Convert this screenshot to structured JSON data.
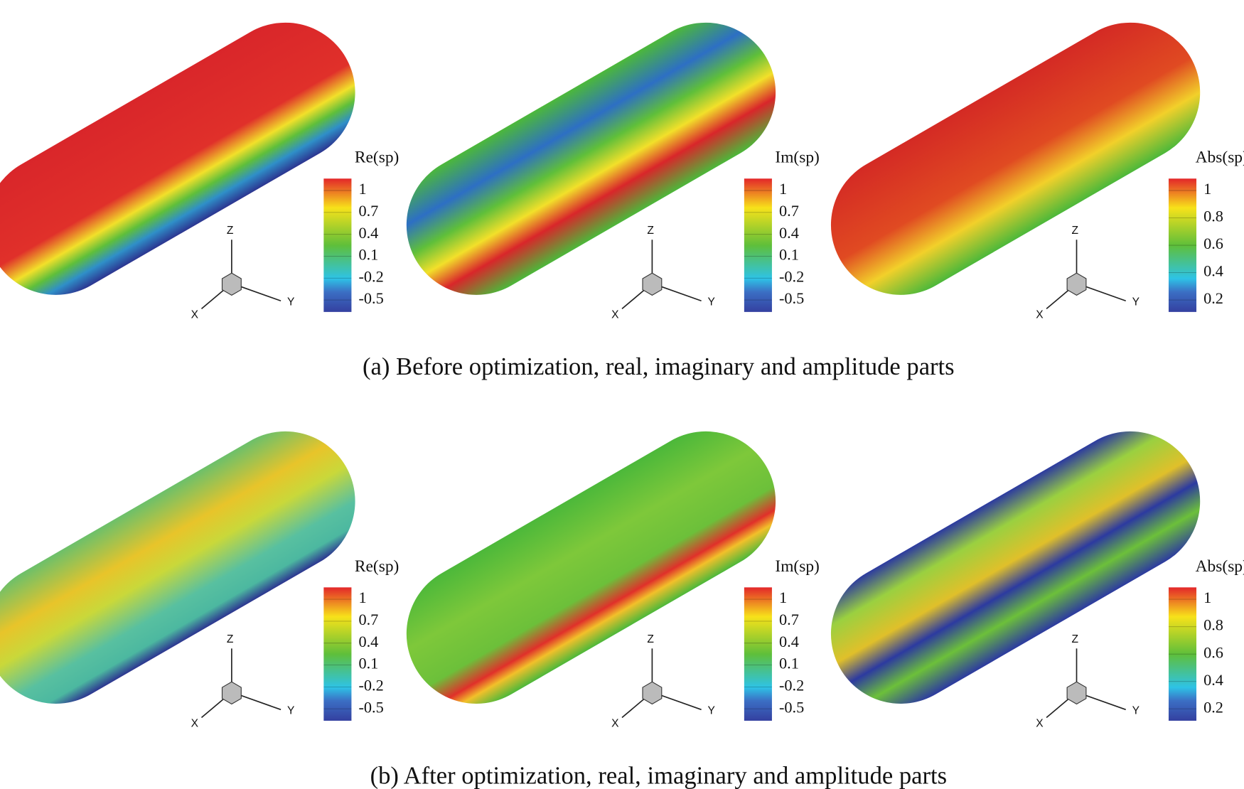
{
  "rows": [
    {
      "caption": "(a) Before optimization, real, imaginary and amplitude parts",
      "panels": [
        {
          "colorbar": {
            "title": "Re(sp)",
            "ticks": [
              1,
              0.7,
              0.4,
              0.1,
              -0.2,
              -0.5
            ]
          },
          "triad": {
            "x": "X",
            "y": "Y",
            "z": "Z"
          }
        },
        {
          "colorbar": {
            "title": "Im(sp)",
            "ticks": [
              1,
              0.7,
              0.4,
              0.1,
              -0.2,
              -0.5
            ]
          },
          "triad": {
            "x": "X",
            "y": "Y",
            "z": "Z"
          }
        },
        {
          "colorbar": {
            "title": "Abs(sp)",
            "ticks": [
              1,
              0.8,
              0.6,
              0.4,
              0.2
            ]
          },
          "triad": {
            "x": "X",
            "y": "Y",
            "z": "Z"
          }
        }
      ]
    },
    {
      "caption": "(b) After optimization, real, imaginary and amplitude parts",
      "panels": [
        {
          "colorbar": {
            "title": "Re(sp)",
            "ticks": [
              1,
              0.7,
              0.4,
              0.1,
              -0.2,
              -0.5
            ]
          },
          "triad": {
            "x": "X",
            "y": "Y",
            "z": "Z"
          }
        },
        {
          "colorbar": {
            "title": "Im(sp)",
            "ticks": [
              1,
              0.7,
              0.4,
              0.1,
              -0.2,
              -0.5
            ]
          },
          "triad": {
            "x": "X",
            "y": "Y",
            "z": "Z"
          }
        },
        {
          "colorbar": {
            "title": "Abs(sp)",
            "ticks": [
              1,
              0.8,
              0.6,
              0.4,
              0.2
            ]
          },
          "triad": {
            "x": "X",
            "y": "Y",
            "z": "Z"
          }
        }
      ]
    }
  ]
}
